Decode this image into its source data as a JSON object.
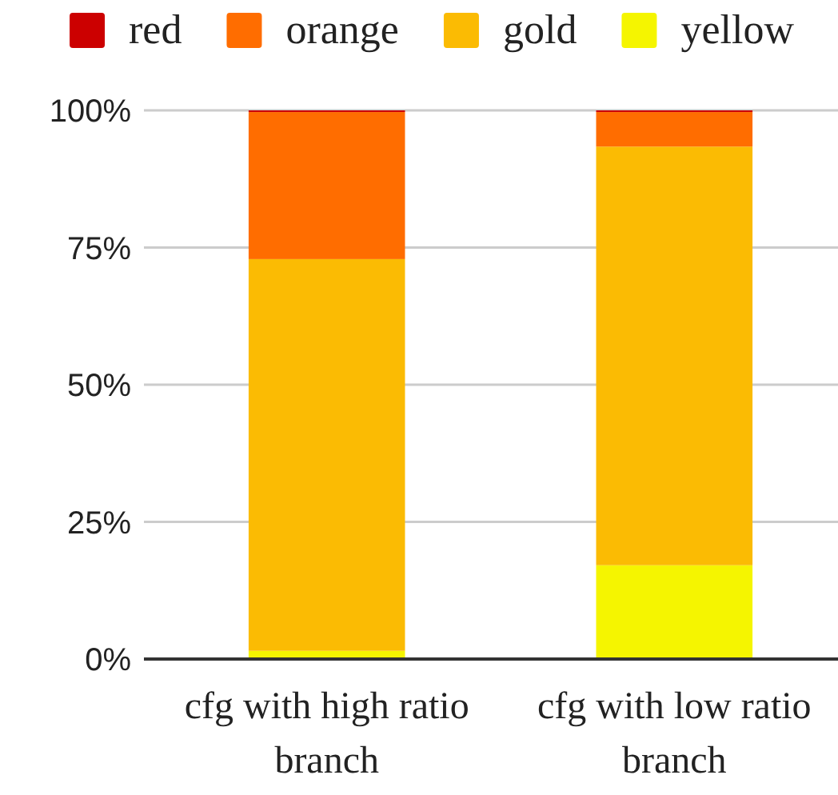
{
  "chart_data": {
    "type": "bar",
    "stacked": true,
    "categories": [
      "cfg with high ratio branch",
      "cfg with low ratio branch"
    ],
    "series": [
      {
        "name": "yellow",
        "color": "#f5f500",
        "values": [
          1.5,
          17.1
        ]
      },
      {
        "name": "gold",
        "color": "#fbbb03",
        "values": [
          71.4,
          76.3
        ]
      },
      {
        "name": "orange",
        "color": "#ff6d00",
        "values": [
          26.8,
          6.3
        ]
      },
      {
        "name": "red",
        "color": "#cc0000",
        "values": [
          0.3,
          0.3
        ]
      }
    ],
    "ylim": [
      0,
      100
    ],
    "yticks": [
      {
        "value": 0,
        "label": "0%"
      },
      {
        "value": 25,
        "label": "25%"
      },
      {
        "value": 50,
        "label": "50%"
      },
      {
        "value": 75,
        "label": "75%"
      },
      {
        "value": 100,
        "label": "100%"
      }
    ],
    "grid": "y",
    "legend": "top"
  }
}
